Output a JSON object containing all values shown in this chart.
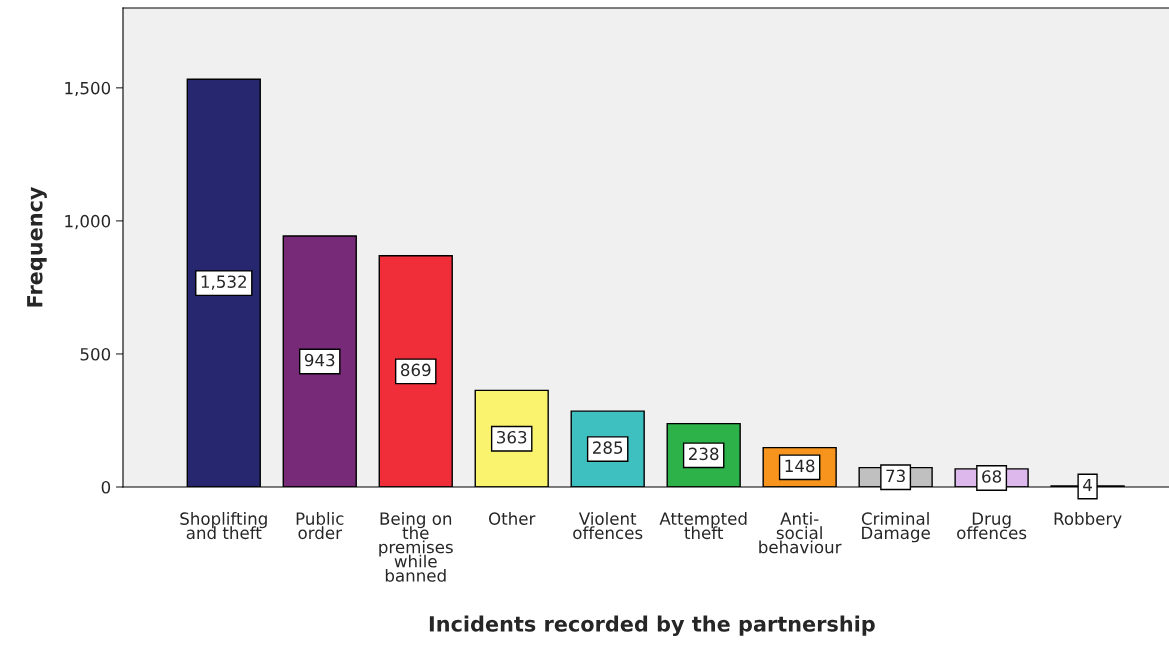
{
  "chart_data": {
    "type": "bar",
    "xlabel": "Incidents recorded by the partnership",
    "ylabel": "Frequency",
    "categories": [
      "Shoplifting\nand theft",
      "Public\norder",
      "Being on\nthe\npremises\nwhile\nbanned",
      "Other",
      "Violent\noffences",
      "Attempted\ntheft",
      "Anti-\nsocial\nbehaviour",
      "Criminal\nDamage",
      "Drug\noffences",
      "Robbery"
    ],
    "values": [
      1532,
      943,
      869,
      363,
      285,
      238,
      148,
      73,
      68,
      4
    ],
    "value_labels": [
      "1,532",
      "943",
      "869",
      "363",
      "285",
      "238",
      "148",
      "73",
      "68",
      "4"
    ],
    "colors": [
      "#26276e",
      "#772a78",
      "#ef2e3a",
      "#faf36e",
      "#3ebfc0",
      "#2db24a",
      "#f7941d",
      "#c0c0c0",
      "#dcb8ec",
      "#333333"
    ],
    "ylim": [
      0,
      1800
    ],
    "yticks": [
      0,
      500,
      {
        "value": 1000,
        "label": "1,000"
      },
      {
        "value": 1500,
        "label": "1,500"
      }
    ],
    "grid": false,
    "legend": false
  }
}
